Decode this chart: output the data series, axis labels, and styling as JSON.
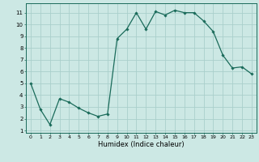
{
  "x": [
    0,
    1,
    2,
    3,
    4,
    5,
    6,
    7,
    8,
    9,
    10,
    11,
    12,
    13,
    14,
    15,
    16,
    17,
    18,
    19,
    20,
    21,
    22,
    23
  ],
  "y": [
    5.0,
    2.8,
    1.5,
    3.7,
    3.4,
    2.9,
    2.5,
    2.2,
    2.4,
    8.8,
    9.6,
    11.0,
    9.6,
    11.1,
    10.8,
    11.2,
    11.0,
    11.0,
    10.3,
    9.4,
    7.4,
    6.3,
    6.4,
    5.8
  ],
  "line_color": "#1a6b5a",
  "marker_color": "#1a6b5a",
  "bg_color": "#cce8e4",
  "grid_color": "#aacfcb",
  "xlabel": "Humidex (Indice chaleur)",
  "ylabel_ticks": [
    1,
    2,
    3,
    4,
    5,
    6,
    7,
    8,
    9,
    10,
    11
  ],
  "xlim": [
    -0.5,
    23.5
  ],
  "ylim": [
    0.8,
    11.8
  ],
  "xtick_fontsize": 4.5,
  "ytick_fontsize": 5.0,
  "xlabel_fontsize": 6.0,
  "linewidth": 0.9,
  "markersize": 1.8
}
